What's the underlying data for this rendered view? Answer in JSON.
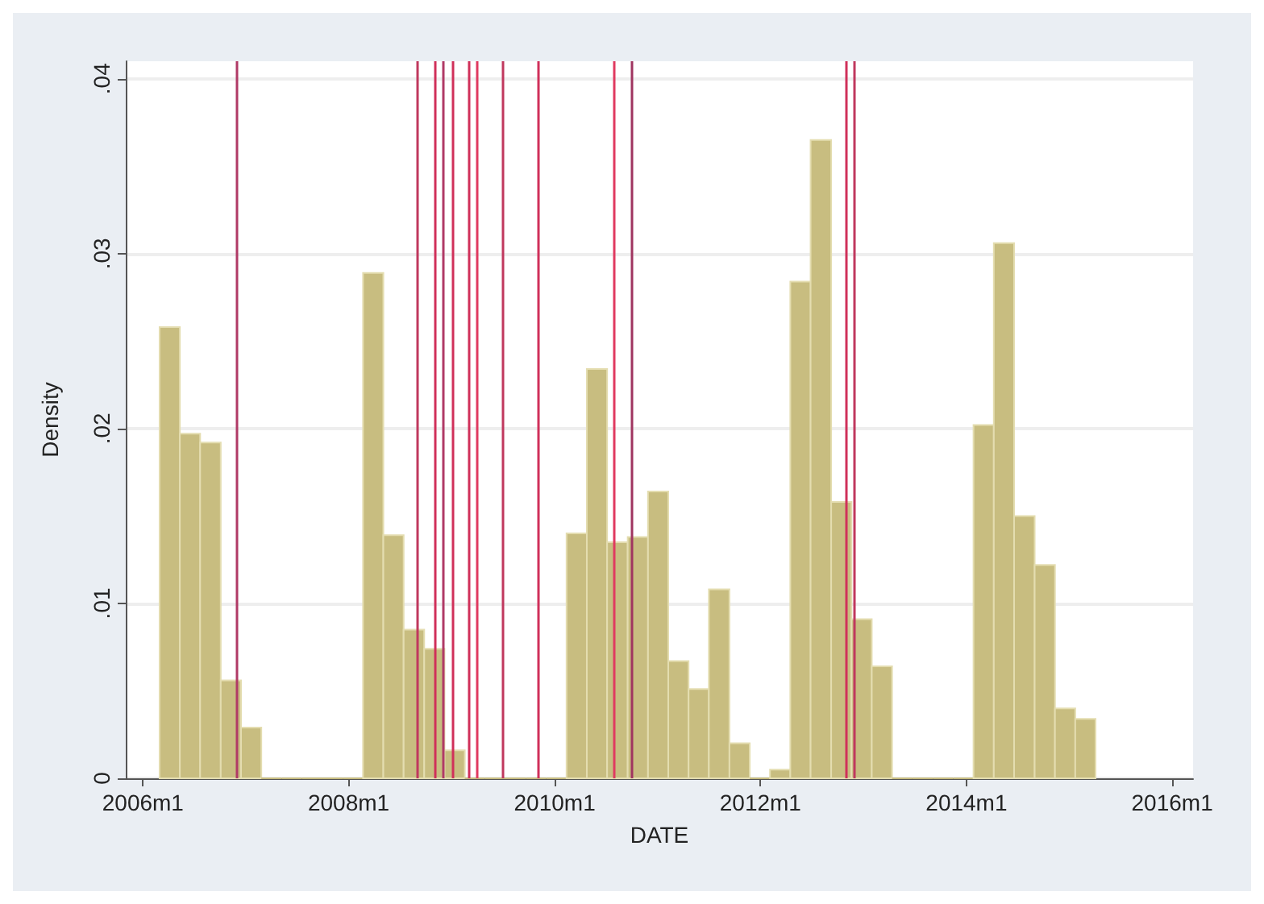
{
  "chart_data": {
    "type": "histogram",
    "xlabel": "DATE",
    "ylabel": "Density",
    "color": "#c8bd80",
    "bins": [
      "2006-03-01",
      "2006-05-12",
      "2006-07-23",
      "2006-10-04",
      "2006-12-15",
      "2007-02-25",
      "2007-05-08",
      "2007-07-19",
      "2007-09-30",
      "2007-12-11",
      "2008-02-21",
      "2008-05-03",
      "2008-07-14",
      "2008-09-25",
      "2008-12-06",
      "2009-02-16",
      "2009-04-29",
      "2009-07-10",
      "2009-09-21",
      "2009-12-02",
      "2010-02-12",
      "2010-04-25",
      "2010-07-06",
      "2010-09-17",
      "2010-11-28",
      "2011-02-08",
      "2011-04-21",
      "2011-07-02",
      "2011-09-13",
      "2011-11-24",
      "2012-02-04",
      "2012-04-16",
      "2012-06-27",
      "2012-09-08",
      "2012-11-19",
      "2013-01-30",
      "2013-04-12",
      "2013-06-23",
      "2013-09-04",
      "2013-11-15",
      "2014-01-26",
      "2014-04-08",
      "2014-06-19",
      "2014-08-31",
      "2014-11-11",
      "2015-01-22",
      "2015-04-04"
    ],
    "values": [
      0.0258,
      0.0197,
      0.0192,
      0.0056,
      0.0029,
      0,
      0,
      0,
      0,
      0,
      0.0289,
      0.0139,
      0.0085,
      0.0074,
      0.0016,
      0,
      0,
      0,
      0,
      0,
      0.014,
      0.0234,
      0.0135,
      0.0138,
      0.0164,
      0.0067,
      0.0051,
      0.0108,
      0.002,
      0,
      0.0005,
      0.0284,
      0.0365,
      0.0158,
      0.0091,
      0.0064,
      0,
      0,
      0,
      0,
      0.0202,
      0.0306,
      0.015,
      0.0122,
      0.004,
      0.0034
    ],
    "xlim": [
      "2005-11-01",
      "2016-03-15"
    ],
    "xticks": [
      {
        "value": "2006-01",
        "label": "2006m1"
      },
      {
        "value": "2008-01",
        "label": "2008m1"
      },
      {
        "value": "2010-01",
        "label": "2010m1"
      },
      {
        "value": "2012-01",
        "label": "2012m1"
      },
      {
        "value": "2014-01",
        "label": "2014m1"
      },
      {
        "value": "2016-01",
        "label": "2016m1"
      }
    ],
    "ylim": [
      0,
      0.041
    ],
    "yticks": [
      {
        "value": 0,
        "label": "0"
      },
      {
        "value": 0.01,
        "label": ".01"
      },
      {
        "value": 0.02,
        "label": ".02"
      },
      {
        "value": 0.03,
        "label": ".03"
      },
      {
        "value": 0.04,
        "label": ".04"
      }
    ],
    "grid": "y",
    "ref_lines": [
      {
        "axis": "x",
        "value": "2006-12",
        "color": "#b03a66"
      },
      {
        "axis": "x",
        "value": "2008-09",
        "color": "#c0385e"
      },
      {
        "axis": "x",
        "value": "2008-11",
        "color": "#d0305a"
      },
      {
        "axis": "x",
        "value": "2008-12",
        "color": "#b03a66"
      },
      {
        "axis": "x",
        "value": "2009-01",
        "color": "#d0305a"
      },
      {
        "axis": "x",
        "value": "2009-03",
        "color": "#d0305a"
      },
      {
        "axis": "x",
        "value": "2009-04",
        "color": "#e03a60"
      },
      {
        "axis": "x",
        "value": "2009-07",
        "color": "#c0385e"
      },
      {
        "axis": "x",
        "value": "2009-11",
        "color": "#d0305a"
      },
      {
        "axis": "x",
        "value": "2010-08",
        "color": "#e03a60"
      },
      {
        "axis": "x",
        "value": "2010-10",
        "color": "#a03560"
      },
      {
        "axis": "x",
        "value": "2012-11",
        "color": "#d0305a"
      },
      {
        "axis": "x",
        "value": "2012-12",
        "color": "#c0385e"
      }
    ]
  }
}
